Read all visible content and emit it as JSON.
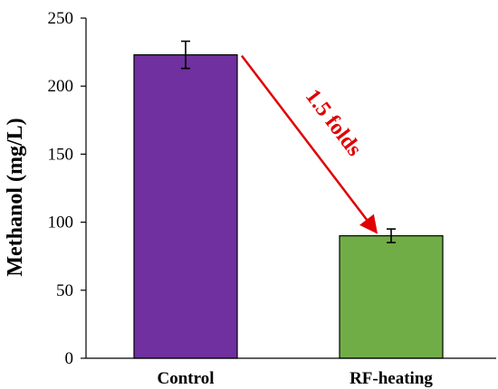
{
  "chart_data": {
    "type": "bar",
    "categories": [
      "Control",
      "RF-heating"
    ],
    "values": [
      223,
      90
    ],
    "errors": [
      10,
      5
    ],
    "colors": [
      "#7030A0",
      "#70AD47"
    ],
    "ylabel": "Methanol (mg/L)",
    "xlabel": "",
    "ylim": [
      0,
      250
    ],
    "yticks": [
      0,
      50,
      100,
      150,
      200,
      250
    ],
    "grid": false,
    "annotation": {
      "text": "1.5 folds",
      "color": "#E00000",
      "from_category": "Control",
      "to_category": "RF-heating"
    }
  }
}
